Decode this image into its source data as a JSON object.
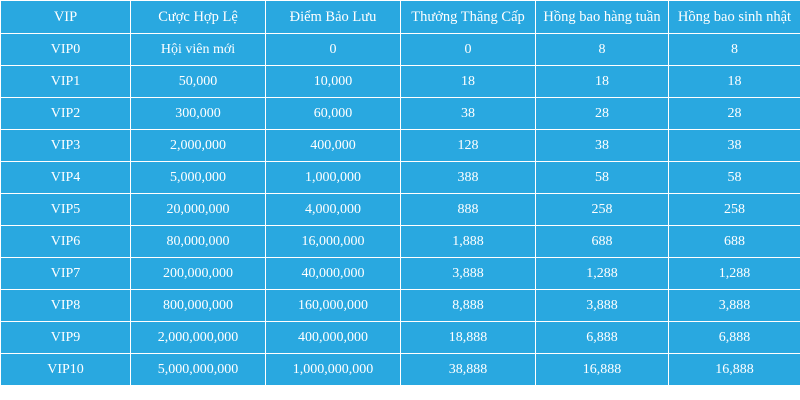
{
  "table": {
    "header": [
      "VIP",
      "Cược Hợp Lệ",
      "Điểm Bảo Lưu",
      "Thưởng Thăng Cấp",
      "Hồng bao hàng tuần",
      "Hồng bao sinh nhật"
    ],
    "rows": [
      [
        "VIP0",
        "Hội viên mới",
        "0",
        "0",
        "8",
        "8"
      ],
      [
        "VIP1",
        "50,000",
        "10,000",
        "18",
        "18",
        "18"
      ],
      [
        "VIP2",
        "300,000",
        "60,000",
        "38",
        "28",
        "28"
      ],
      [
        "VIP3",
        "2,000,000",
        "400,000",
        "128",
        "38",
        "38"
      ],
      [
        "VIP4",
        "5,000,000",
        "1,000,000",
        "388",
        "58",
        "58"
      ],
      [
        "VIP5",
        "20,000,000",
        "4,000,000",
        "888",
        "258",
        "258"
      ],
      [
        "VIP6",
        "80,000,000",
        "16,000,000",
        "1,888",
        "688",
        "688"
      ],
      [
        "VIP7",
        "200,000,000",
        "40,000,000",
        "3,888",
        "1,288",
        "1,288"
      ],
      [
        "VIP8",
        "800,000,000",
        "160,000,000",
        "8,888",
        "3,888",
        "3,888"
      ],
      [
        "VIP9",
        "2,000,000,000",
        "400,000,000",
        "18,888",
        "6,888",
        "6,888"
      ],
      [
        "VIP10",
        "5,000,000,000",
        "1,000,000,000",
        "38,888",
        "16,888",
        "16,888"
      ]
    ]
  }
}
